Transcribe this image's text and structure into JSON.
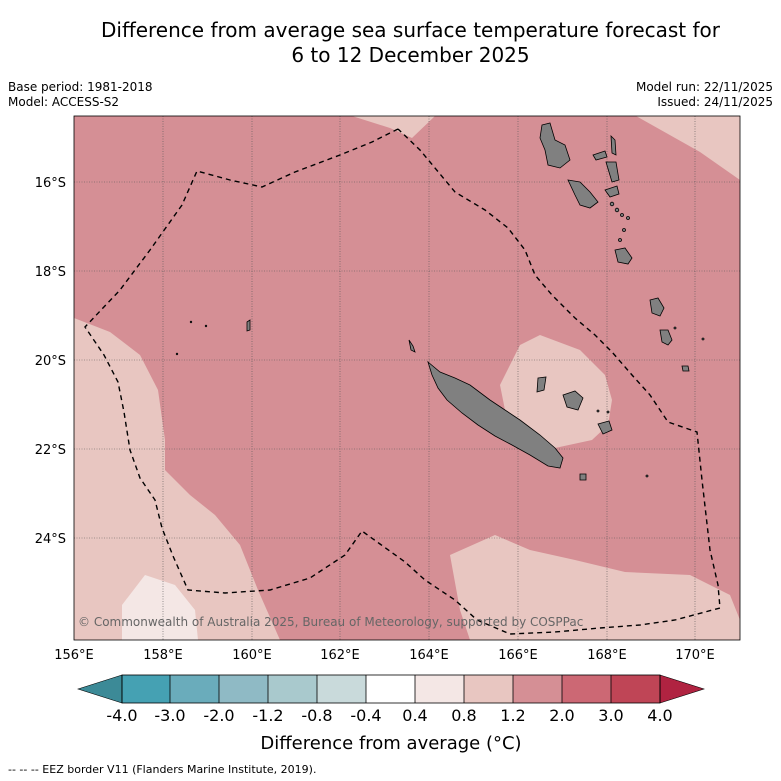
{
  "header": {
    "title_line1": "Difference from average sea surface temperature forecast for",
    "title_line2": "6 to 12 December 2025",
    "base_period": "Base period: 1981-2018",
    "model": "Model: ACCESS-S2",
    "model_run": "Model run: 22/11/2025",
    "issued": "Issued: 24/11/2025"
  },
  "map": {
    "lon_range": [
      156,
      171
    ],
    "lat_range": [
      -26.1,
      -14.3
    ],
    "lon_ticks": [
      156,
      158,
      160,
      162,
      164,
      166,
      168,
      170
    ],
    "lon_tick_labels": [
      "156°E",
      "158°E",
      "160°E",
      "162°E",
      "164°E",
      "166°E",
      "168°E",
      "170°E"
    ],
    "lat_ticks": [
      -16,
      -18,
      -20,
      -22,
      -24
    ],
    "lat_tick_labels": [
      "16°S",
      "18°S",
      "20°S",
      "22°S",
      "24°S"
    ],
    "copyright": "© Commonwealth of Australia 2025, Bureau of Meteorology, supported by COSPPac",
    "colors": {
      "anomaly_1_2_to_2_0": "#d58f95",
      "anomaly_0_8_to_1_2": "#e8c6c1",
      "anomaly_0_4_to_0_8": "#f4e7e5",
      "land": "#808080",
      "grid": "#555555"
    }
  },
  "colorbar": {
    "labels": [
      "-4.0",
      "-3.0",
      "-2.0",
      "-1.2",
      "-0.8",
      "-0.4",
      "0.4",
      "0.8",
      "1.2",
      "2.0",
      "3.0",
      "4.0"
    ],
    "colors": [
      "#45a1b3",
      "#6aacbb",
      "#8fbac5",
      "#a9c9cd",
      "#c9dadb",
      "#ffffff",
      "#f4e7e5",
      "#e8c6c1",
      "#d58f95",
      "#cc6874",
      "#bf4556"
    ],
    "low_extend_color": "#3c8a97",
    "high_extend_color": "#b02341",
    "title": "Difference from average (°C)"
  },
  "footer": {
    "legend_eez": "-- -- -- EEZ border V11 (Flanders Marine Institute, 2019)."
  }
}
